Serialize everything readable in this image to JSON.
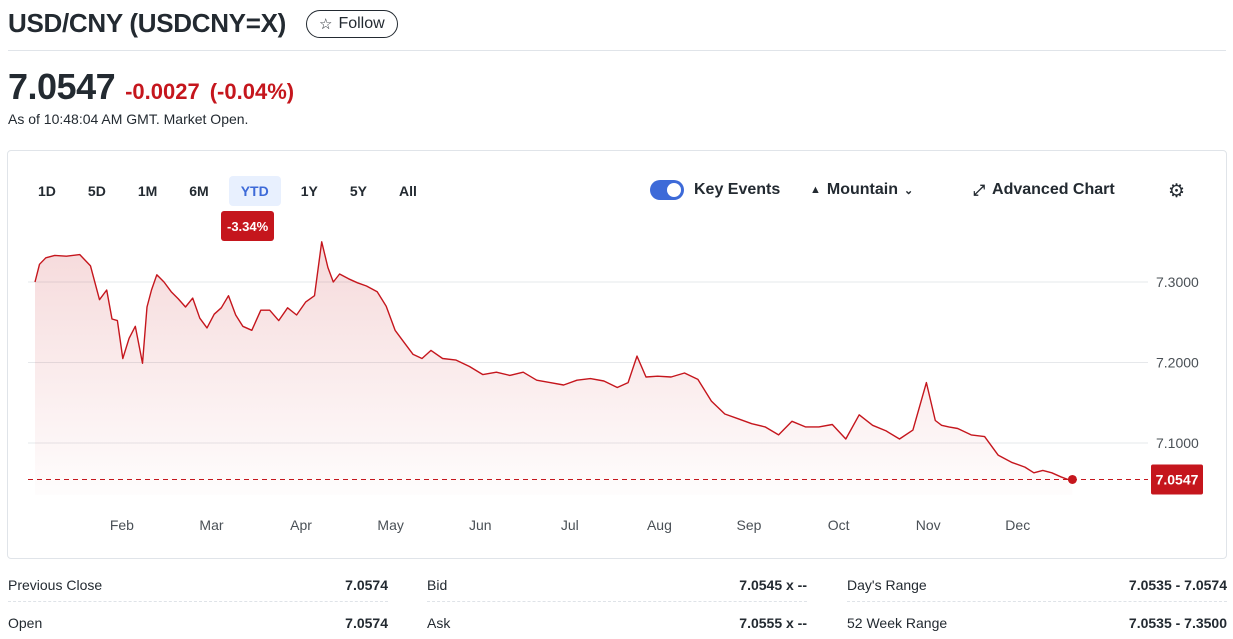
{
  "header": {
    "title": "USD/CNY (USDCNY=X)",
    "follow_label": "Follow",
    "follow_icon": "star-outline-icon"
  },
  "quote": {
    "price": "7.0547",
    "change": "-0.0027",
    "change_pct": "(-0.04%)",
    "as_of": "As of 10:48:04 AM GMT. Market Open.",
    "color_down": "#c5161d"
  },
  "toolbar": {
    "ranges": [
      "1D",
      "5D",
      "1M",
      "6M",
      "YTD",
      "1Y",
      "5Y",
      "All"
    ],
    "active_range": "YTD",
    "range_change_badge": "-3.34%",
    "key_events_label": "Key Events",
    "key_events_on": true,
    "chart_type_label": "Mountain",
    "advanced_chart_label": "Advanced Chart",
    "icons": {
      "chart_type": "mountain-icon",
      "advanced": "expand-arrows-icon",
      "settings": "gear-icon"
    }
  },
  "chart_data": {
    "type": "area",
    "title": "",
    "xlabel": "",
    "ylabel": "",
    "x_tick_labels": [
      "Feb",
      "Mar",
      "Apr",
      "May",
      "Jun",
      "Jul",
      "Aug",
      "Sep",
      "Oct",
      "Nov",
      "Dec"
    ],
    "y_tick_labels": [
      "7.3000",
      "7.2000",
      "7.1000"
    ],
    "y_ticks": [
      7.3,
      7.2,
      7.1
    ],
    "ylim": [
      7.0,
      7.4
    ],
    "x_domain": [
      0,
      12
    ],
    "grid": true,
    "current_value": 7.0547,
    "current_value_label": "7.0547",
    "line_color": "#c5161d",
    "series": [
      {
        "x": [
          0.0,
          0.05,
          0.12,
          0.22,
          0.35,
          0.5,
          0.62,
          0.72,
          0.8,
          0.86,
          0.92,
          0.98,
          1.05,
          1.12,
          1.2,
          1.25,
          1.3,
          1.36,
          1.44,
          1.52,
          1.6,
          1.68,
          1.76,
          1.84,
          1.92,
          2.0,
          2.08,
          2.16,
          2.24,
          2.32,
          2.42,
          2.52,
          2.62,
          2.72,
          2.82,
          2.92,
          3.02,
          3.12,
          3.2,
          3.27,
          3.33,
          3.4,
          3.5,
          3.6,
          3.7,
          3.82,
          3.92,
          4.02,
          4.12,
          4.22,
          4.32,
          4.42,
          4.55,
          4.7,
          4.85,
          5.0,
          5.15,
          5.3,
          5.45,
          5.6,
          5.75,
          5.9,
          6.05,
          6.2,
          6.35,
          6.5,
          6.62,
          6.72,
          6.82,
          6.95,
          7.1,
          7.25,
          7.4,
          7.55,
          7.7,
          7.85,
          8.0,
          8.15,
          8.3,
          8.45,
          8.6,
          8.75,
          8.9,
          9.05,
          9.2,
          9.35,
          9.5,
          9.65,
          9.8,
          9.95,
          10.05,
          10.12,
          10.2,
          10.3,
          10.45,
          10.6,
          10.75,
          10.9,
          11.05,
          11.15,
          11.25,
          11.35,
          11.45,
          11.52,
          11.58
        ],
        "y": [
          7.3,
          7.322,
          7.33,
          7.333,
          7.332,
          7.334,
          7.32,
          7.278,
          7.29,
          7.254,
          7.252,
          7.205,
          7.23,
          7.245,
          7.199,
          7.269,
          7.29,
          7.309,
          7.3,
          7.288,
          7.279,
          7.269,
          7.28,
          7.255,
          7.243,
          7.26,
          7.268,
          7.283,
          7.259,
          7.245,
          7.24,
          7.265,
          7.265,
          7.252,
          7.268,
          7.259,
          7.275,
          7.283,
          7.35,
          7.318,
          7.3,
          7.31,
          7.304,
          7.299,
          7.295,
          7.288,
          7.27,
          7.24,
          7.225,
          7.21,
          7.205,
          7.215,
          7.205,
          7.203,
          7.195,
          7.185,
          7.188,
          7.184,
          7.188,
          7.178,
          7.175,
          7.172,
          7.178,
          7.18,
          7.177,
          7.169,
          7.175,
          7.208,
          7.182,
          7.183,
          7.182,
          7.187,
          7.179,
          7.152,
          7.136,
          7.13,
          7.124,
          7.12,
          7.11,
          7.127,
          7.12,
          7.12,
          7.123,
          7.105,
          7.135,
          7.122,
          7.115,
          7.105,
          7.116,
          7.175,
          7.128,
          7.122,
          7.12,
          7.118,
          7.11,
          7.108,
          7.085,
          7.076,
          7.07,
          7.063,
          7.066,
          7.063,
          7.058,
          7.055,
          7.0547
        ]
      }
    ]
  },
  "stats": [
    {
      "label": "Previous Close",
      "value": "7.0574"
    },
    {
      "label": "Bid",
      "value": "7.0545 x --"
    },
    {
      "label": "Day's Range",
      "value": "7.0535 - 7.0574"
    },
    {
      "label": "Open",
      "value": "7.0574"
    },
    {
      "label": "Ask",
      "value": "7.0555 x --"
    },
    {
      "label": "52 Week Range",
      "value": "7.0535 - 7.3500"
    }
  ]
}
